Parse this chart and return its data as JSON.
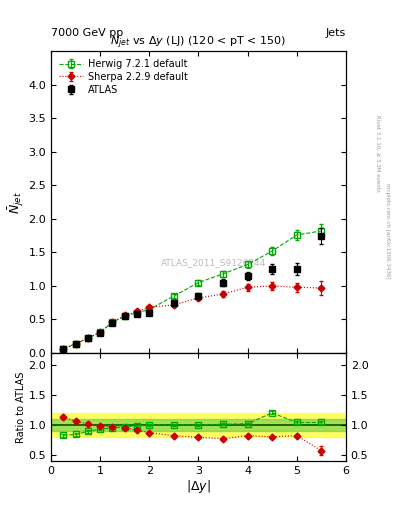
{
  "title_top_left": "7000 GeV pp",
  "title_top_right": "Jets",
  "plot_title": "$N_{jet}$ vs $\\Delta y$ (LJ) (120 < pT < 150)",
  "watermark": "ATLAS_2011_S9126244",
  "right_label_top": "Rivet 3.1.10, ≥ 3.3M events",
  "right_label_bottom": "mcplots.cern.ch [arXiv:1306.3436]",
  "atlas_x": [
    0.25,
    0.5,
    0.75,
    1.0,
    1.25,
    1.5,
    1.75,
    2.0,
    2.5,
    3.0,
    3.5,
    4.0,
    4.5,
    5.0,
    5.5
  ],
  "atlas_y": [
    0.06,
    0.13,
    0.22,
    0.3,
    0.45,
    0.55,
    0.58,
    0.6,
    0.75,
    0.85,
    1.05,
    1.15,
    1.25,
    1.25,
    1.75
  ],
  "atlas_yerr": [
    0.004,
    0.007,
    0.01,
    0.012,
    0.018,
    0.02,
    0.022,
    0.025,
    0.03,
    0.04,
    0.05,
    0.06,
    0.07,
    0.09,
    0.12
  ],
  "herwig_x": [
    0.25,
    0.5,
    0.75,
    1.0,
    1.25,
    1.5,
    1.75,
    2.0,
    2.5,
    3.0,
    3.5,
    4.0,
    4.5,
    5.0,
    5.5
  ],
  "herwig_y": [
    0.06,
    0.14,
    0.22,
    0.31,
    0.46,
    0.55,
    0.6,
    0.65,
    0.85,
    1.05,
    1.18,
    1.32,
    1.52,
    1.76,
    1.82
  ],
  "herwig_yerr": [
    0.003,
    0.005,
    0.008,
    0.01,
    0.015,
    0.018,
    0.02,
    0.022,
    0.03,
    0.038,
    0.045,
    0.055,
    0.065,
    0.08,
    0.1
  ],
  "sherpa_x": [
    0.25,
    0.5,
    0.75,
    1.0,
    1.25,
    1.5,
    1.75,
    2.0,
    2.5,
    3.0,
    3.5,
    4.0,
    4.5,
    5.0,
    5.5
  ],
  "sherpa_y": [
    0.06,
    0.14,
    0.22,
    0.31,
    0.46,
    0.56,
    0.62,
    0.68,
    0.72,
    0.82,
    0.88,
    0.98,
    1.0,
    0.98,
    0.97
  ],
  "sherpa_yerr": [
    0.004,
    0.006,
    0.009,
    0.011,
    0.017,
    0.02,
    0.022,
    0.025,
    0.03,
    0.035,
    0.042,
    0.05,
    0.055,
    0.065,
    0.1
  ],
  "ratio_herwig_x": [
    0.25,
    0.5,
    0.75,
    1.0,
    1.25,
    1.5,
    1.75,
    2.0,
    2.5,
    3.0,
    3.5,
    4.0,
    4.5,
    5.0,
    5.5
  ],
  "ratio_herwig_y": [
    0.83,
    0.84,
    0.89,
    0.93,
    0.95,
    0.97,
    0.98,
    1.0,
    1.0,
    1.0,
    1.01,
    1.02,
    1.2,
    1.04,
    1.04
  ],
  "ratio_herwig_yerr": [
    0.025,
    0.025,
    0.02,
    0.018,
    0.016,
    0.016,
    0.015,
    0.015,
    0.014,
    0.013,
    0.013,
    0.015,
    0.025,
    0.018,
    0.022
  ],
  "ratio_sherpa_x": [
    0.25,
    0.5,
    0.75,
    1.0,
    1.25,
    1.5,
    1.75,
    2.0,
    2.5,
    3.0,
    3.5,
    4.0,
    4.5,
    5.0,
    5.5
  ],
  "ratio_sherpa_y": [
    1.13,
    1.06,
    1.02,
    0.98,
    0.97,
    0.95,
    0.91,
    0.87,
    0.82,
    0.79,
    0.77,
    0.82,
    0.8,
    0.82,
    0.57
  ],
  "ratio_sherpa_yerr": [
    0.03,
    0.025,
    0.02,
    0.018,
    0.017,
    0.016,
    0.015,
    0.014,
    0.013,
    0.013,
    0.013,
    0.016,
    0.02,
    0.025,
    0.07
  ],
  "band_yellow_low": 0.8,
  "band_yellow_high": 1.2,
  "band_green_low": 0.9,
  "band_green_high": 1.1,
  "atlas_color": "#000000",
  "herwig_color": "#00aa00",
  "sherpa_color": "#cc0000",
  "ylim_main": [
    0.0,
    4.5
  ],
  "ylim_ratio": [
    0.4,
    2.2
  ],
  "xlim": [
    0.0,
    6.0
  ],
  "ylabel_main": "$\\bar{N}_{jet}$",
  "ylabel_ratio": "Ratio to ATLAS",
  "xlabel": "$|\\Delta y|$"
}
